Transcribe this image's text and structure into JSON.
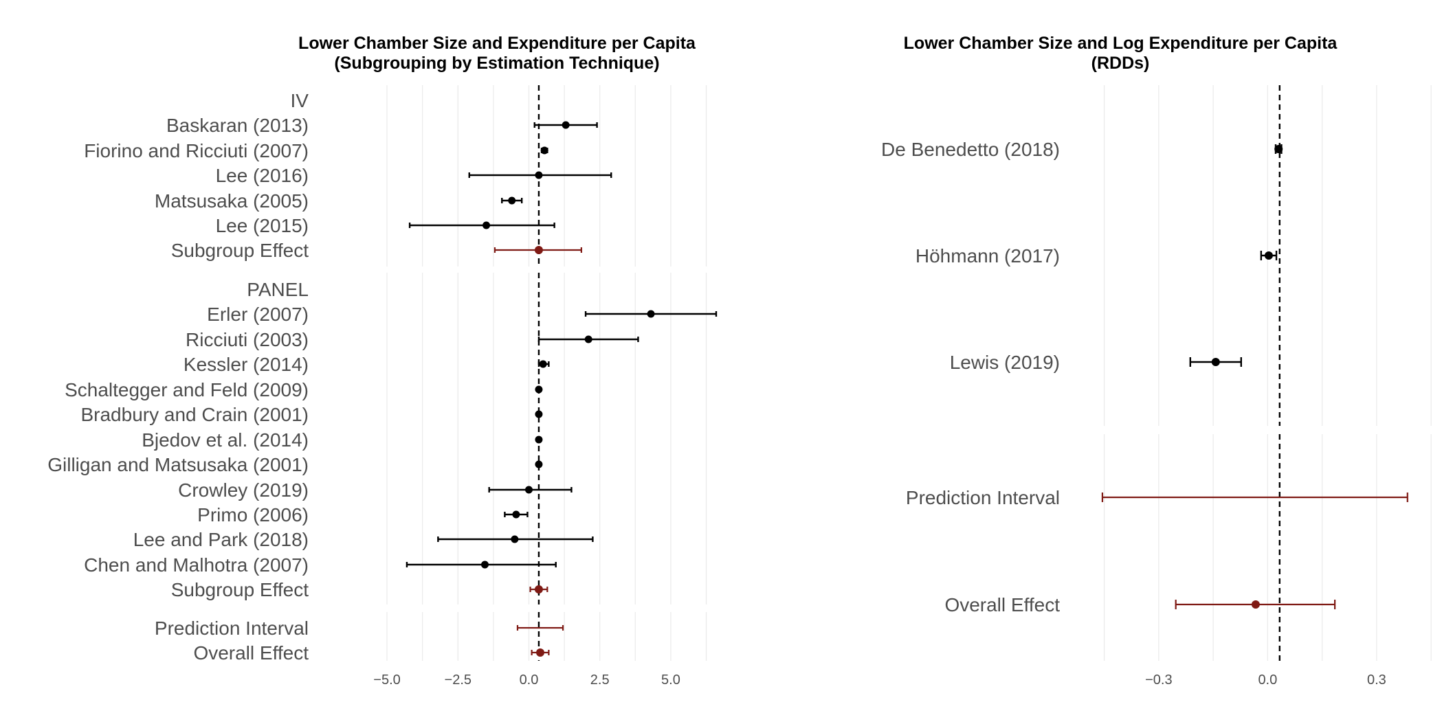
{
  "colors": {
    "point": "#000000",
    "summary": "#7f1a14",
    "grid": "#ebebeb",
    "text": "#4d4d4d"
  },
  "chart_data": [
    {
      "type": "forest",
      "title_lines": [
        "Lower Chamber Size and Expenditure per Capita",
        "(Subgrouping by Estimation Technique)"
      ],
      "xlim": [
        -5.8,
        6.6
      ],
      "reference_line": 0.35,
      "xticks": [
        -5.0,
        -2.5,
        0.0,
        2.5,
        5.0
      ],
      "xtick_labels": [
        "−5.0",
        "−2.5",
        "0.0",
        "2.5",
        "5.0"
      ],
      "grid": "vertical, light grey",
      "blocks": [
        {
          "rows": [
            {
              "label": "IV",
              "kind": "header"
            },
            {
              "label": "Baskaran (2013)",
              "kind": "study",
              "est": 1.3,
              "lo": 0.2,
              "hi": 2.4
            },
            {
              "label": "Fiorino and Ricciuti (2007)",
              "kind": "study",
              "est": 0.55,
              "lo": 0.45,
              "hi": 0.65
            },
            {
              "label": "Lee (2016)",
              "kind": "study",
              "est": 0.35,
              "lo": -2.1,
              "hi": 2.9
            },
            {
              "label": "Matsusaka (2005)",
              "kind": "study",
              "est": -0.6,
              "lo": -0.95,
              "hi": -0.25
            },
            {
              "label": "Lee (2015)",
              "kind": "study",
              "est": -1.5,
              "lo": -4.2,
              "hi": 0.9
            },
            {
              "label": "Subgroup Effect",
              "kind": "summary",
              "est": 0.35,
              "lo": -1.2,
              "hi": 1.85
            }
          ]
        },
        {
          "rows": [
            {
              "label": "PANEL",
              "kind": "header"
            },
            {
              "label": "Erler (2007)",
              "kind": "study",
              "est": 4.3,
              "lo": 2.0,
              "hi": 6.6
            },
            {
              "label": "Ricciuti (2003)",
              "kind": "study",
              "est": 2.1,
              "lo": 0.35,
              "hi": 3.85
            },
            {
              "label": "Kessler (2014)",
              "kind": "study",
              "est": 0.5,
              "lo": 0.35,
              "hi": 0.7
            },
            {
              "label": "Schaltegger and Feld (2009)",
              "kind": "study",
              "est": 0.35,
              "lo": 0.3,
              "hi": 0.4
            },
            {
              "label": "Bradbury and Crain (2001)",
              "kind": "study",
              "est": 0.35,
              "lo": 0.3,
              "hi": 0.4
            },
            {
              "label": "Bjedov et al. (2014)",
              "kind": "study",
              "est": 0.35,
              "lo": 0.3,
              "hi": 0.4
            },
            {
              "label": "Gilligan and Matsusaka (2001)",
              "kind": "study",
              "est": 0.35,
              "lo": 0.3,
              "hi": 0.4
            },
            {
              "label": "Crowley (2019)",
              "kind": "study",
              "est": 0.0,
              "lo": -1.4,
              "hi": 1.5
            },
            {
              "label": "Primo (2006)",
              "kind": "study",
              "est": -0.45,
              "lo": -0.85,
              "hi": -0.05
            },
            {
              "label": "Lee and Park (2018)",
              "kind": "study",
              "est": -0.5,
              "lo": -3.2,
              "hi": 2.25
            },
            {
              "label": "Chen and Malhotra (2007)",
              "kind": "study",
              "est": -1.55,
              "lo": -4.3,
              "hi": 0.95
            },
            {
              "label": "Subgroup Effect",
              "kind": "summary",
              "est": 0.35,
              "lo": 0.05,
              "hi": 0.65
            }
          ]
        },
        {
          "rows": [
            {
              "label": "Prediction Interval",
              "kind": "interval",
              "lo": -0.4,
              "hi": 1.2
            },
            {
              "label": "Overall Effect",
              "kind": "summary",
              "est": 0.4,
              "lo": 0.1,
              "hi": 0.7
            }
          ]
        }
      ]
    },
    {
      "type": "forest",
      "title_lines": [
        "Lower Chamber Size and Log Expenditure per Capita",
        "(RDDs)"
      ],
      "xlim": [
        -0.47,
        0.48
      ],
      "reference_line": 0.033,
      "xticks": [
        -0.3,
        0.0,
        0.3
      ],
      "xtick_labels": [
        "−0.3",
        "0.0",
        "0.3"
      ],
      "grid": "vertical, light grey",
      "blocks": [
        {
          "rows": [
            {
              "label": "De Benedetto (2018)",
              "kind": "study",
              "est": 0.03,
              "lo": 0.022,
              "hi": 0.038
            },
            {
              "label": "Höhmann (2017)",
              "kind": "study",
              "est": 0.003,
              "lo": -0.018,
              "hi": 0.024
            },
            {
              "label": "Lewis (2019)",
              "kind": "study",
              "est": -0.143,
              "lo": -0.213,
              "hi": -0.073
            }
          ]
        },
        {
          "rows": [
            {
              "label": "Prediction Interval",
              "kind": "interval",
              "lo": -0.455,
              "hi": 0.385
            },
            {
              "label": "Overall Effect",
              "kind": "summary",
              "est": -0.033,
              "lo": -0.253,
              "hi": 0.185
            }
          ]
        }
      ]
    }
  ]
}
